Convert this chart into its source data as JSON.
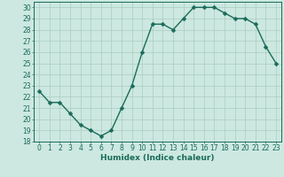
{
  "x": [
    0,
    1,
    2,
    3,
    4,
    5,
    6,
    7,
    8,
    9,
    10,
    11,
    12,
    13,
    14,
    15,
    16,
    17,
    18,
    19,
    20,
    21,
    22,
    23
  ],
  "y": [
    22.5,
    21.5,
    21.5,
    20.5,
    19.5,
    19.0,
    18.5,
    19.0,
    21.0,
    23.0,
    26.0,
    28.5,
    28.5,
    28.0,
    29.0,
    30.0,
    30.0,
    30.0,
    29.5,
    29.0,
    29.0,
    28.5,
    26.5,
    25.0
  ],
  "line_color": "#1a6b5a",
  "marker": "D",
  "marker_size": 2.5,
  "bg_color": "#cce8e0",
  "grid_color": "#aaccbf",
  "xlabel": "Humidex (Indice chaleur)",
  "xlim": [
    -0.5,
    23.5
  ],
  "ylim": [
    18,
    30.5
  ],
  "yticks": [
    18,
    19,
    20,
    21,
    22,
    23,
    24,
    25,
    26,
    27,
    28,
    29,
    30
  ],
  "xticks": [
    0,
    1,
    2,
    3,
    4,
    5,
    6,
    7,
    8,
    9,
    10,
    11,
    12,
    13,
    14,
    15,
    16,
    17,
    18,
    19,
    20,
    21,
    22,
    23
  ],
  "tick_fontsize": 5.5,
  "xlabel_fontsize": 6.5,
  "line_width": 1.0
}
